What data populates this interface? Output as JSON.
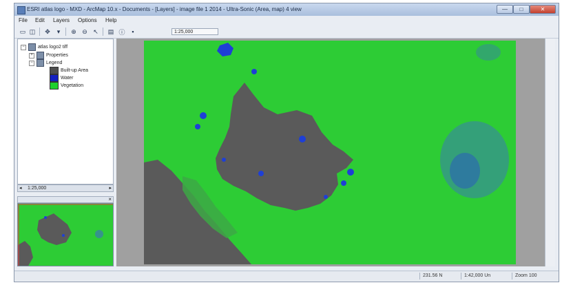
{
  "window": {
    "title": "ESRI atlas logo - MXD - ArcMap 10.x - Documents - [Layers] - image file 1 2014 - Ultra-Sonic (Area, map) 4 view",
    "min_label": "—",
    "max_label": "□",
    "close_label": "✕"
  },
  "menu": [
    "File",
    "Edit",
    "Layers",
    "Options",
    "Help"
  ],
  "toolbar": {
    "scale_value": "1:25,000",
    "icons": [
      "new-icon",
      "open-icon",
      "pan-icon",
      "zoom-in-icon",
      "zoom-out-icon",
      "select-icon",
      "layers-icon",
      "identify-icon",
      "save-icon"
    ]
  },
  "toc": {
    "root_label": "atlas logo2 tiff",
    "properties_label": "Properties",
    "legend_label": "Legend",
    "legend": [
      {
        "label": "Built-up Area",
        "color": "#4f4f4f"
      },
      {
        "label": "Water",
        "color": "#1420c0"
      },
      {
        "label": "Vegetation",
        "color": "#1fd02f"
      }
    ]
  },
  "panel_divider_label": "1:25,000",
  "status": {
    "coords": "231.56 N",
    "scale": "1:42,000 Un",
    "zoom": "Zoom 100"
  },
  "map": {
    "background_color": "#a0a0a0",
    "vegetation_color": "#2dcc35",
    "builtup_color": "#5a5a5a",
    "water_color": "#1e3fd6"
  }
}
